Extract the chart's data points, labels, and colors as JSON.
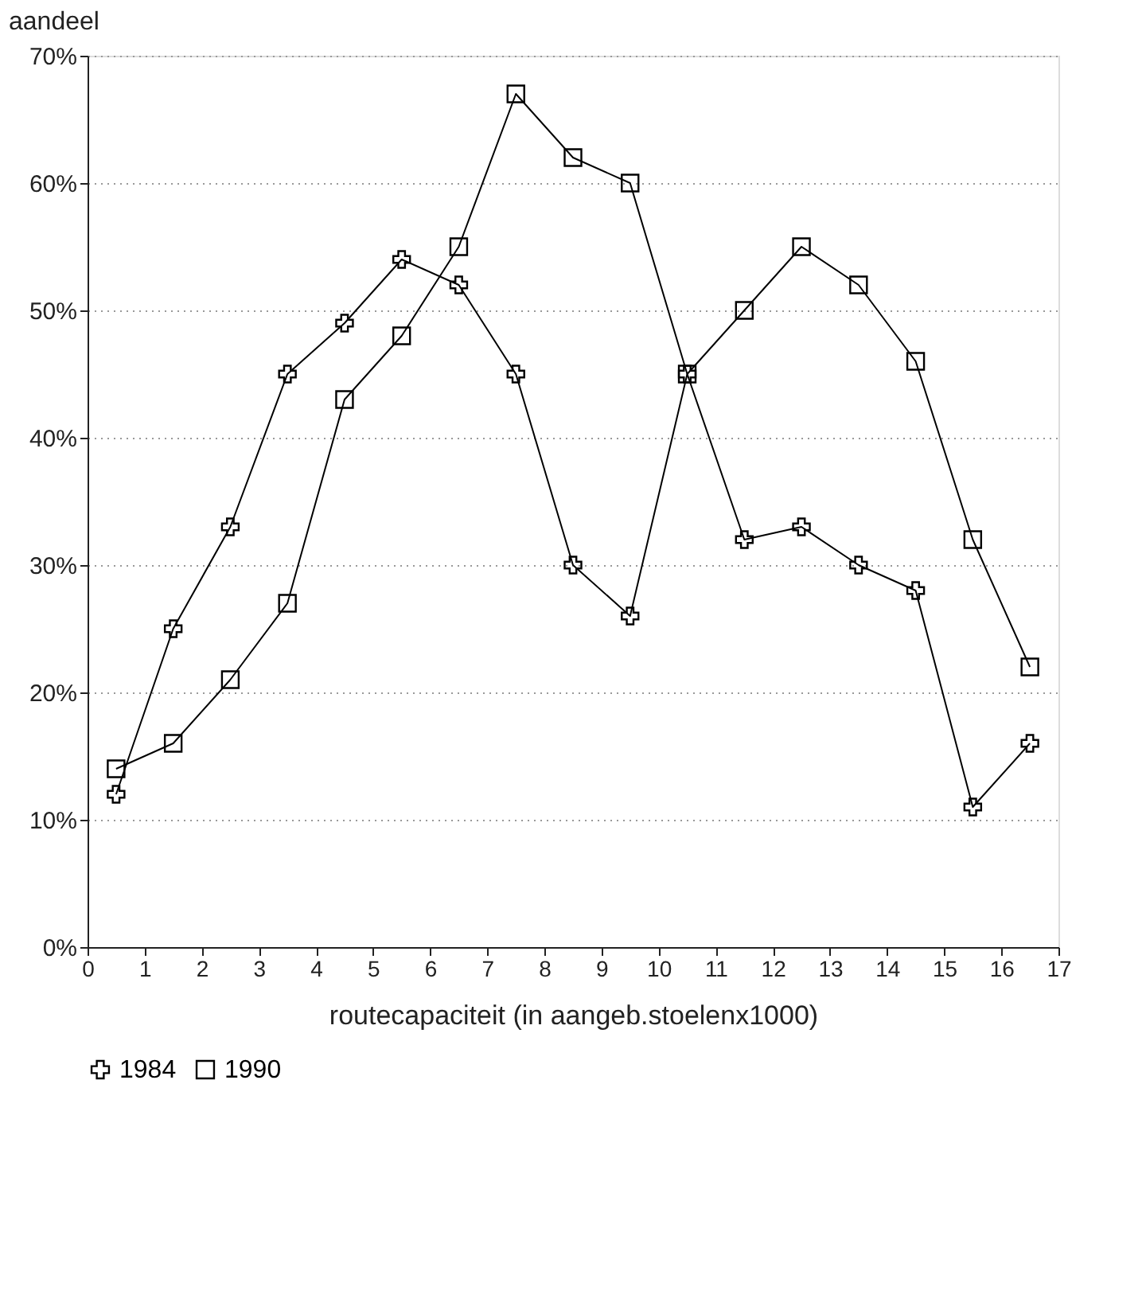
{
  "chart_data": {
    "type": "line",
    "ylabel": "aandeel",
    "xlabel": "routecapaciteit (in aangeb.stoelenx1000)",
    "x": [
      0.5,
      1.5,
      2.5,
      3.5,
      4.5,
      5.5,
      6.5,
      7.5,
      8.5,
      9.5,
      10.5,
      11.5,
      12.5,
      13.5,
      14.5,
      15.5,
      16.5
    ],
    "series": [
      {
        "name": "1984",
        "color": "#000000",
        "marker": "cross",
        "values": [
          12,
          25,
          33,
          45,
          49,
          54,
          52,
          45,
          30,
          26,
          45,
          32,
          33,
          30,
          28,
          11,
          16
        ]
      },
      {
        "name": "1990",
        "color": "#000000",
        "marker": "square",
        "values": [
          14,
          16,
          21,
          27,
          43,
          48,
          55,
          67,
          62,
          60,
          45,
          50,
          55,
          52,
          46,
          32,
          22
        ]
      }
    ],
    "xlim": [
      0,
      17
    ],
    "xticks": [
      0,
      1,
      2,
      3,
      4,
      5,
      6,
      7,
      8,
      9,
      10,
      11,
      12,
      13,
      14,
      15,
      16,
      17
    ],
    "ylim": [
      0,
      70
    ],
    "yticks": [
      {
        "value": 0,
        "label": "0%"
      },
      {
        "value": 10,
        "label": "10%"
      },
      {
        "value": 20,
        "label": "20%"
      },
      {
        "value": 30,
        "label": "30%"
      },
      {
        "value": 40,
        "label": "40%"
      },
      {
        "value": 50,
        "label": "50%"
      },
      {
        "value": 60,
        "label": "60%"
      },
      {
        "value": 70,
        "label": "70%"
      }
    ],
    "grid": "y",
    "legend": "bottom",
    "line_style": "solid"
  }
}
